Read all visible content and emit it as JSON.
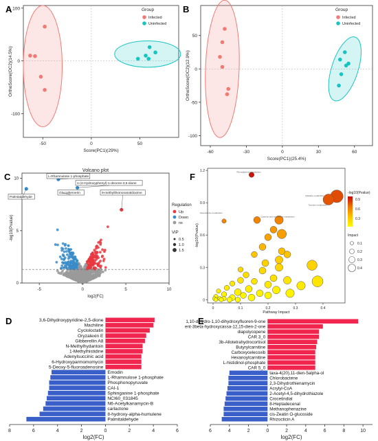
{
  "panel_letters": [
    "A",
    "B",
    "C",
    "D",
    "E",
    "F"
  ],
  "colors": {
    "infected": "#f07a74",
    "uninfected": "#18c4c1",
    "up": "#e8373f",
    "down": "#3a8cc8",
    "ns": "#9a9a9a",
    "bar_up": "#f0264e",
    "bar_down": "#3a5fc8"
  },
  "chart_data": [
    {
      "id": "A",
      "type": "scatter",
      "title": "",
      "xlabel": "Score(PC1)(29%)",
      "ylabel": "OrthoScore(OC2)(14.5%)",
      "xlim": [
        -70,
        90
      ],
      "ylim": [
        -145,
        105
      ],
      "xticks": [
        -50,
        0,
        50
      ],
      "yticks": [
        -100,
        0,
        100
      ],
      "legend": {
        "title": "Group",
        "placement": "top-right",
        "entries": [
          "Infected",
          "Uninfected"
        ]
      },
      "ellipses": [
        {
          "group": "Infected",
          "center": [
            -50,
            -10
          ],
          "rx": 20,
          "ry": 115
        },
        {
          "group": "Uninfected",
          "center": [
            58,
            13
          ],
          "rx": 34,
          "ry": 25
        }
      ],
      "series": [
        {
          "name": "Infected",
          "points": [
            [
              -48,
              65
            ],
            [
              -63,
              10
            ],
            [
              -58,
              9
            ],
            [
              -52,
              -30
            ],
            [
              -48,
              -55
            ]
          ]
        },
        {
          "name": "Uninfected",
          "points": [
            [
              56,
              10
            ],
            [
              60,
              26
            ],
            [
              66,
              16
            ],
            [
              48,
              4
            ],
            [
              59,
              4
            ]
          ]
        }
      ]
    },
    {
      "id": "B",
      "type": "scatter",
      "title": "",
      "xlabel": "Score(PC1)(25.4%)",
      "ylabel": "OrthoScore(OC2)(12.9%)",
      "xlim": [
        -68,
        75
      ],
      "ylim": [
        -115,
        95
      ],
      "xticks": [
        -60,
        -30,
        0,
        30,
        60
      ],
      "yticks": [
        -100,
        -50,
        0,
        50
      ],
      "legend": {
        "title": "Group",
        "placement": "top-right",
        "entries": [
          "Infected",
          "Uninfected"
        ]
      },
      "ellipses": [
        {
          "group": "Infected",
          "center": [
            -50,
            0
          ],
          "rx": 14,
          "ry": 103
        },
        {
          "group": "Uninfected",
          "center": [
            52,
            0
          ],
          "rx": 11,
          "ry": 50
        }
      ],
      "series": [
        {
          "name": "Infected",
          "points": [
            [
              -48,
              60
            ],
            [
              -50,
              40
            ],
            [
              -52,
              18
            ],
            [
              -50,
              3
            ],
            [
              -45,
              -30
            ],
            [
              -46,
              -38
            ]
          ]
        },
        {
          "name": "Uninfected",
          "points": [
            [
              52,
              25
            ],
            [
              48,
              14
            ],
            [
              53,
              5
            ],
            [
              49,
              -8
            ],
            [
              47,
              -25
            ],
            [
              55,
              8
            ]
          ]
        }
      ]
    },
    {
      "id": "C",
      "type": "scatter",
      "title": "Volcano plot",
      "xlabel": "log2(FC)",
      "ylabel": "-log10(Pvalue)",
      "xlim": [
        -7,
        10
      ],
      "ylim": [
        0,
        10.5
      ],
      "xticks": [
        -5,
        0,
        5,
        10
      ],
      "yticks": [
        0,
        5,
        10
      ],
      "significance_threshold": 1.3,
      "legend": {
        "title": "Regulation",
        "placement": "right",
        "entries": [
          "Up",
          "Down",
          "ns"
        ],
        "size_title": "VIP",
        "size_entries": [
          "0.5",
          "1.0",
          "1.5"
        ]
      },
      "annotations": [
        {
          "label": "L-Rhamnulose 1-phosphate",
          "point": [
            -2.8,
            9.9
          ]
        },
        {
          "label": "Palmitaldehyde",
          "point": [
            -6.5,
            9.0
          ]
        },
        {
          "label": "Glucoiberverin",
          "point": [
            -2.2,
            8.6
          ]
        },
        {
          "label": "1-(4-Hydroxyphenyl)-1-decene-3,5-dione",
          "point": [
            -0.6,
            9.1
          ]
        },
        {
          "label": "9-methylthiononanaldoxime",
          "point": [
            4.5,
            7.0
          ]
        }
      ]
    },
    {
      "id": "F",
      "type": "scatter",
      "title": "",
      "xlabel": "Pathway Impact",
      "ylabel": "-log10(Pvalue)",
      "xlim": [
        -0.02,
        0.48
      ],
      "ylim": [
        -0.03,
        1.22
      ],
      "xticks": [
        0.0,
        0.1,
        0.2,
        0.3,
        0.4
      ],
      "yticks": [
        0.0,
        0.3,
        0.6,
        0.9,
        1.2
      ],
      "legend": {
        "color_title": "-log10(Pvalue)",
        "color_ticks": [
          "0.9",
          "0.6",
          "0.3"
        ],
        "size_title": "Impact",
        "size_entries": [
          "0.1",
          "0.2",
          "0.3",
          "0.4"
        ],
        "placement": "right"
      },
      "annotations": [
        {
          "label": "Phenylalanine metabolism",
          "point": [
            0.14,
            1.16
          ]
        },
        {
          "label": "Histidine metabolism",
          "point": [
            0.44,
            0.94
          ]
        },
        {
          "label": "Tyrosine metabolism",
          "point": [
            0.45,
            0.91
          ]
        },
        {
          "label": "beta-Alanine metabolism",
          "point": [
            0.05,
            0.78
          ]
        },
        {
          "label": "Cysteine and methionine metabolism",
          "point": [
            0.24,
            0.74
          ]
        }
      ],
      "points": [
        [
          0.14,
          1.16,
          0.03
        ],
        [
          0.45,
          0.96,
          0.12
        ],
        [
          0.42,
          0.93,
          0.1
        ],
        [
          0.16,
          0.74,
          0.05
        ],
        [
          0.24,
          0.74,
          0.07
        ],
        [
          0.22,
          0.65,
          0.05
        ],
        [
          0.25,
          0.61,
          0.08
        ],
        [
          0.2,
          0.58,
          0.05
        ],
        [
          0.04,
          0.73,
          0.02
        ],
        [
          0.18,
          0.49,
          0.05
        ],
        [
          0.25,
          0.45,
          0.05
        ],
        [
          0.15,
          0.42,
          0.04
        ],
        [
          0.27,
          0.42,
          0.05
        ],
        [
          0.24,
          0.37,
          0.06
        ],
        [
          0.19,
          0.34,
          0.05
        ],
        [
          0.36,
          0.32,
          0.09
        ],
        [
          0.1,
          0.28,
          0.03
        ],
        [
          0.18,
          0.27,
          0.05
        ],
        [
          0.24,
          0.3,
          0.06
        ],
        [
          0.12,
          0.23,
          0.04
        ],
        [
          0.22,
          0.2,
          0.05
        ],
        [
          0.27,
          0.18,
          0.06
        ],
        [
          0.38,
          0.17,
          0.1
        ],
        [
          0.1,
          0.18,
          0.04
        ],
        [
          0.15,
          0.17,
          0.04
        ],
        [
          0.07,
          0.15,
          0.03
        ],
        [
          0.2,
          0.14,
          0.05
        ],
        [
          0.32,
          0.13,
          0.07
        ],
        [
          0.05,
          0.11,
          0.03
        ],
        [
          0.13,
          0.1,
          0.05
        ],
        [
          0.23,
          0.09,
          0.06
        ],
        [
          0.02,
          0.08,
          0.02
        ],
        [
          0.09,
          0.07,
          0.05
        ],
        [
          0.17,
          0.06,
          0.05
        ],
        [
          0.28,
          0.06,
          0.07
        ],
        [
          0.04,
          0.05,
          0.03
        ],
        [
          0.11,
          0.04,
          0.04
        ],
        [
          0.2,
          0.04,
          0.05
        ],
        [
          0.01,
          0.03,
          0.02
        ],
        [
          0.07,
          0.02,
          0.04
        ],
        [
          0.14,
          0.02,
          0.05
        ],
        [
          0.025,
          0.01,
          0.02
        ],
        [
          0.04,
          0.01,
          0.02
        ],
        [
          0.005,
          0.01,
          0.015
        ],
        [
          0.06,
          0.0,
          0.03
        ],
        [
          0.01,
          0.0,
          0.015
        ],
        [
          0.03,
          0.0,
          0.02
        ],
        [
          0.09,
          0.0,
          0.03
        ]
      ]
    },
    {
      "id": "D",
      "type": "bar",
      "orientation": "horizontal",
      "title": "",
      "xlabel": "log2(FC)",
      "ylabel": "",
      "xlim": [
        -8,
        6
      ],
      "xtick_labels": [
        "8",
        "6",
        "4",
        "2",
        "0",
        "2",
        "4",
        "6"
      ],
      "categories": [
        "3,6-Dihydroxypyridine-2,5-dione",
        "Machiline",
        "Cycloloctatin",
        "Oryzalexin E",
        "Gibberellin A8",
        "N-Methylhydantoin",
        "1-Methylhistidine",
        "Adenylsuccinic acid",
        "6-Hydroxyparmomomycin",
        "5-Deoxy-5-fluoroadenosine",
        "Emodin",
        "L-Rhamnulose 1-phosphate",
        "Phosphonopyruvate",
        "CAI-1",
        "Sphinganine 1-phosphate",
        "NCI60_031845",
        "N6-Acetylkanamycin-B",
        "carlactone",
        "8-hydroxy-alpha-humulene",
        "Palmitaldehyde"
      ],
      "values": [
        4.1,
        4.0,
        3.7,
        3.4,
        3.3,
        3.1,
        3.1,
        3.0,
        3.0,
        3.0,
        -4.5,
        -4.6,
        -4.7,
        -4.7,
        -4.8,
        -4.9,
        -5.0,
        -5.2,
        -5.5,
        -6.6
      ]
    },
    {
      "id": "E",
      "type": "bar",
      "orientation": "horizontal",
      "title": "",
      "xlabel": "log2(FC)",
      "ylabel": "",
      "xlim": [
        -6,
        11
      ],
      "xtick_labels": [
        "6",
        "4",
        "2",
        "0",
        "2",
        "4",
        "6",
        "8",
        "10"
      ],
      "categories": [
        "1,10-dihydro-1,10-dihydroxyfluoren-9-one",
        "ent-3beta-hydroxycassa-12,15-dien-2-one",
        "diapolycopene",
        "CAR 3_0",
        "3b-Allotetrahydrocortisol",
        "Butyrylcarnitine",
        "Carboxycelecoxib",
        "Hexanoylcarnitine",
        "L-histidinol-phosphate",
        "CAR 5_0",
        "taxa-4(20),11-dien-5alpha-ol",
        "Chlorobactene",
        "2,3-Dihydrothienamycin",
        "Acrylyl-CoA",
        "2-Acetyl-4,5-dihydrothiazole",
        "Crocetindial",
        "8-Heptadecenal",
        "Methanophenazine",
        "cis-Zeatin O-glucoside",
        "Rhizocticin A"
      ],
      "values": [
        9.5,
        5.8,
        5.4,
        5.4,
        5.2,
        5.1,
        5.0,
        5.0,
        5.0,
        5.0,
        -4.0,
        -4.1,
        -4.1,
        -4.2,
        -4.3,
        -4.4,
        -4.5,
        -4.6,
        -4.6,
        -4.8
      ]
    }
  ]
}
